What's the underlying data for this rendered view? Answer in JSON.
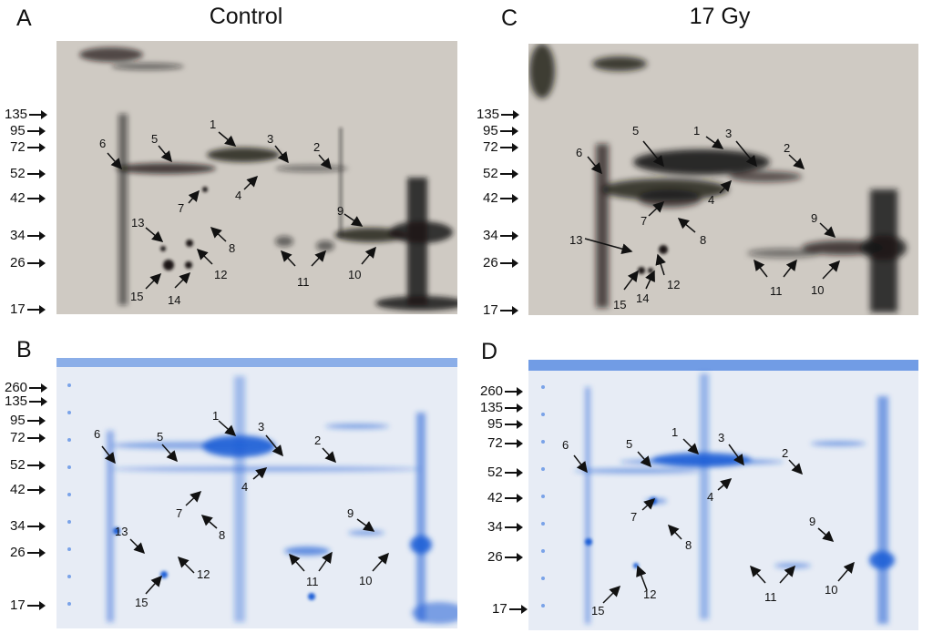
{
  "panels": {
    "A": {
      "letter": "A",
      "title": "Control"
    },
    "B": {
      "letter": "B"
    },
    "C": {
      "letter": "C",
      "title": "17 Gy"
    },
    "D": {
      "letter": "D"
    }
  },
  "mw_top": [
    "135",
    "95",
    "72",
    "52",
    "42",
    "34",
    "26",
    "17"
  ],
  "mw_bottom": [
    "260",
    "135",
    "95",
    "72",
    "52",
    "42",
    "34",
    "26",
    "17"
  ],
  "spots": {
    "A": [
      "1",
      "2",
      "3",
      "4",
      "5",
      "6",
      "7",
      "8",
      "9",
      "10",
      "11",
      "12",
      "13",
      "14",
      "15"
    ],
    "B": [
      "1",
      "2",
      "3",
      "4",
      "5",
      "6",
      "7",
      "8",
      "9",
      "10",
      "11",
      "12",
      "13",
      "15"
    ],
    "C": [
      "1",
      "2",
      "3",
      "4",
      "5",
      "6",
      "7",
      "8",
      "9",
      "10",
      "11",
      "12",
      "13",
      "14",
      "15"
    ],
    "D": [
      "1",
      "2",
      "3",
      "4",
      "5",
      "6",
      "7",
      "8",
      "9",
      "10",
      "11",
      "12",
      "15"
    ]
  },
  "colors": {
    "western": "#cfcac3",
    "coomassie": "#e7ecf5",
    "stain_blue": "#1f5fd6",
    "band_dark": "#1a1614"
  }
}
